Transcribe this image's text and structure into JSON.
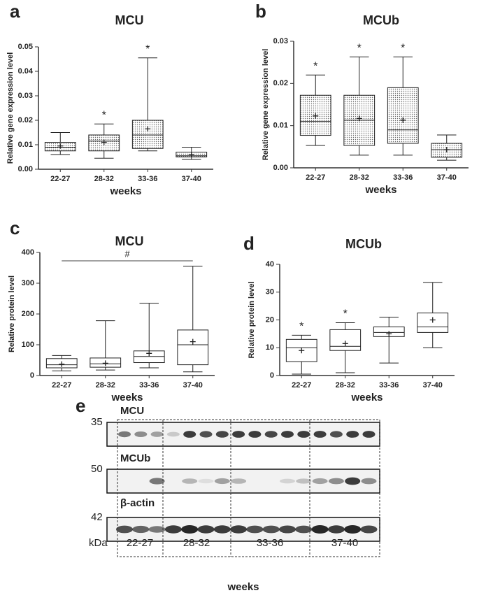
{
  "chart_data": [
    {
      "type": "box",
      "panel_label": "a",
      "title": "MCU",
      "ylabel": "Relative gene expression level",
      "xlabel": "weeks",
      "categories": [
        "22-27",
        "28-32",
        "33-36",
        "37-40"
      ],
      "min": [
        0.006,
        0.0045,
        0.0075,
        0.004
      ],
      "q1": [
        0.0075,
        0.0075,
        0.0085,
        0.005
      ],
      "median": [
        0.009,
        0.0115,
        0.014,
        0.0055
      ],
      "q3": [
        0.011,
        0.014,
        0.02,
        0.007
      ],
      "max": [
        0.015,
        0.0185,
        0.0455,
        0.009
      ],
      "mean": [
        0.0095,
        0.011,
        0.0165,
        0.006
      ],
      "ylim": [
        0,
        0.05
      ],
      "yticks": [
        {
          "value": 0,
          "label": "0.00"
        },
        0.01,
        0.02,
        0.03,
        0.04,
        0.05
      ],
      "box_fill": "dotted",
      "annotations": [
        {
          "text": "*",
          "at": "28-32"
        },
        {
          "text": "*",
          "at": "33-36"
        }
      ]
    },
    {
      "type": "box",
      "panel_label": "b",
      "title": "MCUb",
      "ylabel": "Relative gene expression level",
      "xlabel": "weeks",
      "categories": [
        "22-27",
        "28-32",
        "33-36",
        "37-40"
      ],
      "min": [
        0.0053,
        0.003,
        0.003,
        0.0018
      ],
      "q1": [
        0.0077,
        0.0053,
        0.0058,
        0.0025
      ],
      "median": [
        0.011,
        0.0113,
        0.009,
        0.0043
      ],
      "q3": [
        0.0172,
        0.0172,
        0.019,
        0.0058
      ],
      "max": [
        0.022,
        0.0263,
        0.0263,
        0.0078
      ],
      "mean": [
        0.0123,
        0.0117,
        0.0113,
        0.0043
      ],
      "ylim": [
        0,
        0.03
      ],
      "yticks": [
        {
          "value": 0,
          "label": "0.00"
        },
        0.01,
        0.02,
        0.03
      ],
      "box_fill": "dotted",
      "annotations": [
        {
          "text": "*",
          "at": "22-27"
        },
        {
          "text": "*",
          "at": "28-32"
        },
        {
          "text": "*",
          "at": "33-36"
        }
      ]
    },
    {
      "type": "box",
      "panel_label": "c",
      "title": "MCU",
      "ylabel": "Relative protein level",
      "xlabel": "weeks",
      "categories": [
        "22-27",
        "28-32",
        "33-36",
        "37-40"
      ],
      "min": [
        15,
        18,
        25,
        12
      ],
      "q1": [
        25,
        27,
        42,
        35
      ],
      "median": [
        35,
        38,
        62,
        100
      ],
      "q3": [
        55,
        57,
        80,
        148
      ],
      "max": [
        65,
        178,
        235,
        355
      ],
      "mean": [
        37,
        40,
        72,
        110
      ],
      "ylim": [
        0,
        400
      ],
      "yticks": [
        0,
        100,
        200,
        300,
        400
      ],
      "box_fill": "white",
      "bracket": {
        "text": "#",
        "from": "22-27",
        "to": "37-40"
      }
    },
    {
      "type": "box",
      "panel_label": "d",
      "title": "MCUb",
      "ylabel": "Relative protein level",
      "xlabel": "weeks",
      "categories": [
        "22-27",
        "28-32",
        "33-36",
        "37-40"
      ],
      "min": [
        0.5,
        1,
        4.5,
        10
      ],
      "q1": [
        5,
        9,
        14,
        15.5
      ],
      "median": [
        10,
        10.5,
        15.5,
        17.5
      ],
      "q3": [
        13,
        16.5,
        17.5,
        22.5
      ],
      "max": [
        14.5,
        19,
        21,
        33.5
      ],
      "mean": [
        9,
        11.5,
        15,
        20
      ],
      "ylim": [
        0,
        40
      ],
      "yticks": [
        0,
        10,
        20,
        30,
        40
      ],
      "box_fill": "white",
      "annotations": [
        {
          "text": "*",
          "at": "22-27"
        },
        {
          "text": "*",
          "at": "28-32"
        }
      ]
    }
  ],
  "blot": {
    "panel_label": "e",
    "rows": [
      {
        "name": "MCU",
        "kda": 35
      },
      {
        "name": "MCUb",
        "kda": 50
      },
      {
        "name": "β-actin",
        "kda": 42
      }
    ],
    "unit": "kDa",
    "groups": [
      "22-27",
      "28-32",
      "33-36",
      "37-40"
    ],
    "xlabel": "weeks"
  }
}
